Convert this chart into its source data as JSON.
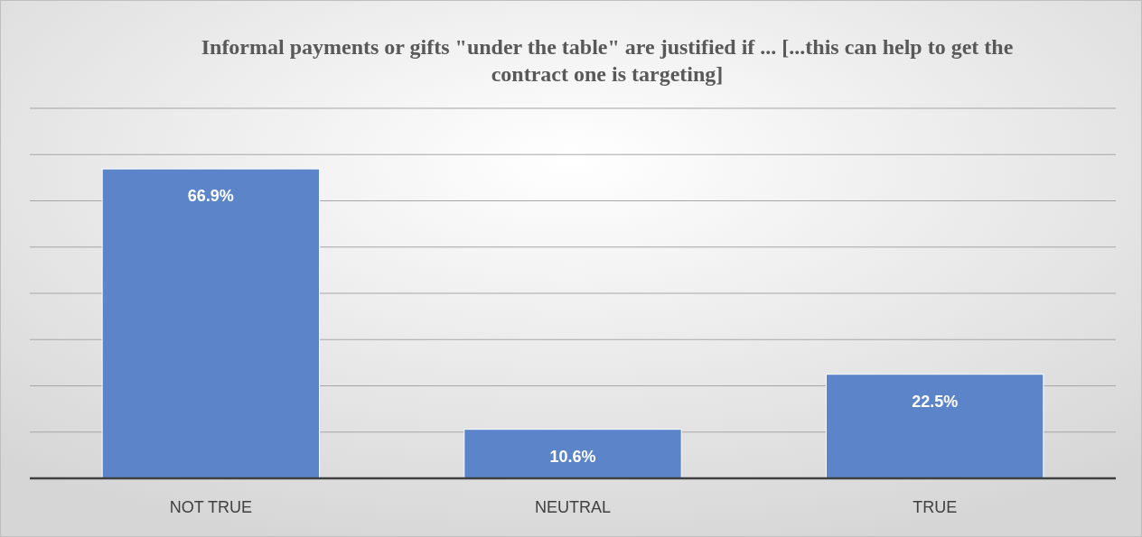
{
  "chart_data": {
    "type": "bar",
    "title": "Informal payments or gifts \"under the table\" are justified if ... [...this can help to get the contract one is targeting]",
    "categories": [
      "NOT TRUE",
      "NEUTRAL",
      "TRUE"
    ],
    "values": [
      66.9,
      10.6,
      22.5
    ],
    "value_labels": [
      "66.9%",
      "10.6%",
      "22.5%"
    ],
    "color": "#5b84c9",
    "ylim": [
      0,
      80
    ],
    "yticks": [
      {
        "value": 0,
        "label": null
      },
      {
        "value": 10,
        "label": null
      },
      {
        "value": 20,
        "label": null
      },
      {
        "value": 30,
        "label": null
      },
      {
        "value": 40,
        "label": null
      },
      {
        "value": 50,
        "label": null
      },
      {
        "value": 60,
        "label": null
      },
      {
        "value": 70,
        "label": null
      },
      {
        "value": 80,
        "label": null
      }
    ],
    "grid": "y",
    "tick_labels": "x"
  }
}
